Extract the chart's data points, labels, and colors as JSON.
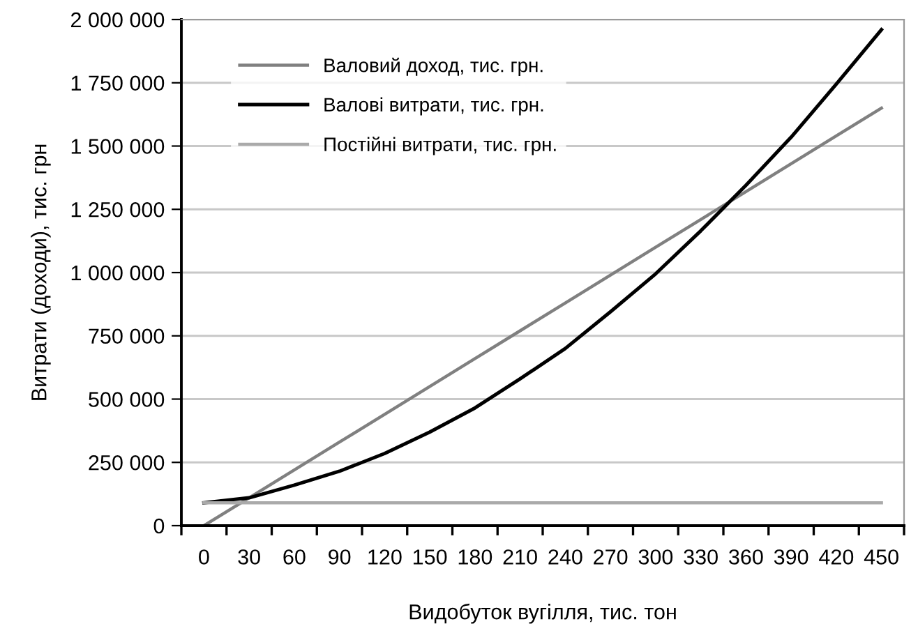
{
  "chart_data": {
    "type": "line",
    "xlabel": "Видобуток вугілля, тис. тон",
    "ylabel": "Витрати (доходи), тис. грн",
    "x": [
      0,
      30,
      60,
      90,
      120,
      150,
      180,
      210,
      240,
      270,
      300,
      330,
      360,
      390,
      420,
      450
    ],
    "series": [
      {
        "name": "Валовий доход, тис. грн.",
        "color": "#808080",
        "values": [
          0,
          110000,
          220000,
          330000,
          440000,
          550000,
          660000,
          770000,
          880000,
          990000,
          1100000,
          1210000,
          1320000,
          1430000,
          1540000,
          1650000
        ]
      },
      {
        "name": "Валові витрати, тис. грн.",
        "color": "#000000",
        "values": [
          90000,
          110000,
          160000,
          215000,
          285000,
          370000,
          465000,
          580000,
          700000,
          845000,
          995000,
          1165000,
          1345000,
          1535000,
          1745000,
          1960000
        ]
      },
      {
        "name": "Постійні витрати, тис. грн.",
        "color": "#aaaaaa",
        "values": [
          90000,
          90000,
          90000,
          90000,
          90000,
          90000,
          90000,
          90000,
          90000,
          90000,
          90000,
          90000,
          90000,
          90000,
          90000,
          90000
        ]
      }
    ],
    "xlim": [
      -15,
      465
    ],
    "xticks": [
      0,
      30,
      60,
      90,
      120,
      150,
      180,
      210,
      240,
      270,
      300,
      330,
      360,
      390,
      420,
      450
    ],
    "ylim": [
      0,
      2000000
    ],
    "yticks": [
      0,
      {
        "value": 250000,
        "label": "250 000"
      },
      {
        "value": 500000,
        "label": "500 000"
      },
      {
        "value": 750000,
        "label": "750 000"
      },
      {
        "value": 1000000,
        "label": "1 000 000"
      },
      {
        "value": 1250000,
        "label": "1 250 000"
      },
      {
        "value": 1500000,
        "label": "1 500 000"
      },
      {
        "value": 1750000,
        "label": "1 750 000"
      },
      {
        "value": 2000000,
        "label": "2 000 000"
      }
    ],
    "grid": "y",
    "legend": "top left",
    "marker": "none",
    "line_style": "solid"
  }
}
